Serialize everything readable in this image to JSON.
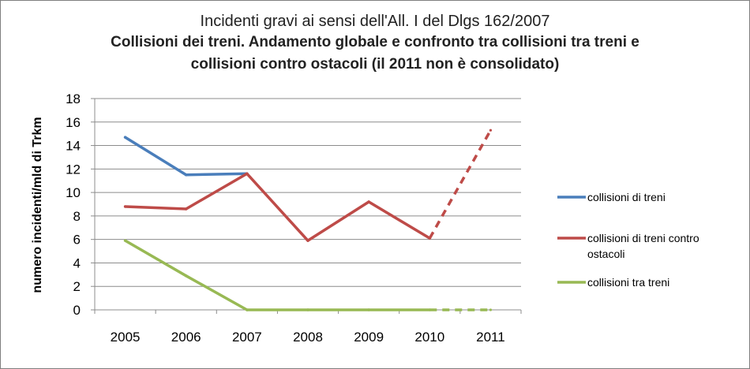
{
  "chart_data": {
    "type": "line",
    "title": "Incidenti gravi ai sensi dell'All. I del Dlgs 162/2007",
    "subtitle_lines": [
      "Collisioni dei treni. Andamento globale e confronto tra collisioni tra treni e",
      "collisioni contro ostacoli (il 2011 non è consolidato)"
    ],
    "xlabel": "",
    "ylabel": "numero incidenti/mld di Trkm",
    "categories": [
      "2005",
      "2006",
      "2007",
      "2008",
      "2009",
      "2010",
      "2011"
    ],
    "ylim": [
      0,
      18
    ],
    "yticks": [
      0,
      2,
      4,
      6,
      8,
      10,
      12,
      14,
      16,
      18
    ],
    "grid": true,
    "legend_position": "right",
    "dashed_last_segment": true,
    "series": [
      {
        "name": "collisioni di treni",
        "color": "#4a7ebb",
        "values": [
          14.7,
          11.5,
          11.6,
          null,
          null,
          null,
          null
        ]
      },
      {
        "name": "collisioni di treni contro ostacoli",
        "legend_lines": [
          "collisioni di treni contro",
          "ostacoli"
        ],
        "color": "#be4b48",
        "values": [
          8.8,
          8.6,
          11.6,
          5.9,
          9.2,
          6.1,
          15.3
        ]
      },
      {
        "name": "collisioni tra treni",
        "color": "#98b954",
        "values": [
          5.9,
          2.9,
          0,
          0,
          0,
          0,
          0
        ]
      }
    ]
  }
}
